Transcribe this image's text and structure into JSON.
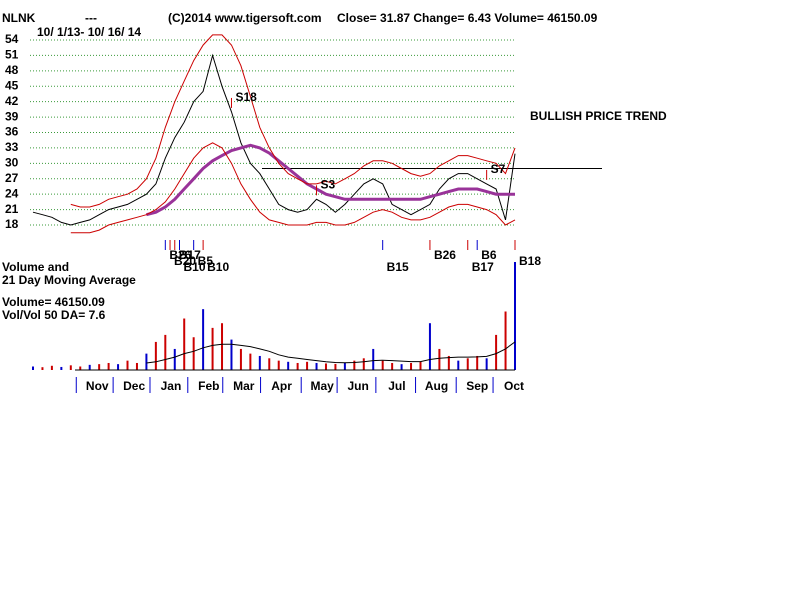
{
  "header": {
    "symbol": "NLNK",
    "flag": "---",
    "copyright": "(C)2014 www.tigersoft.com",
    "quote": "Close=  31.87  Change= 6.43 Volume= 46150.09",
    "period": "10/ 1/13- 10/ 16/ 14"
  },
  "chart_data": {
    "type": "line",
    "annotation": "BULLISH PRICE TREND",
    "ylim": [
      18,
      54
    ],
    "yticks": [
      18,
      21,
      24,
      27,
      30,
      33,
      36,
      39,
      42,
      45,
      48,
      51,
      54
    ],
    "xlim": [
      0,
      51
    ],
    "xticks": [
      {
        "value": 6.8,
        "label": "Nov"
      },
      {
        "value": 10.7,
        "label": "Dec"
      },
      {
        "value": 14.6,
        "label": "Jan"
      },
      {
        "value": 18.6,
        "label": "Feb"
      },
      {
        "value": 22.3,
        "label": "Mar"
      },
      {
        "value": 26.3,
        "label": "Apr"
      },
      {
        "value": 30.6,
        "label": "May"
      },
      {
        "value": 34.4,
        "label": "Jun"
      },
      {
        "value": 38.5,
        "label": "Jul"
      },
      {
        "value": 42.7,
        "label": "Aug"
      },
      {
        "value": 47,
        "label": "Sep"
      },
      {
        "value": 50.9,
        "label": "Oct"
      }
    ],
    "grid": true,
    "resistance": 29,
    "series": [
      {
        "color": "#000000",
        "values": [
          20.5,
          20,
          19.5,
          18.5,
          18,
          18.5,
          19,
          20,
          21,
          21.5,
          22,
          23,
          24,
          26,
          31,
          35,
          38,
          42,
          44,
          51,
          45,
          40,
          34,
          30,
          28,
          25,
          22,
          21,
          20.5,
          21,
          23,
          22,
          20.5,
          22,
          24,
          26,
          27,
          26,
          22,
          21,
          20,
          21,
          22,
          25,
          27,
          28,
          28,
          27,
          26,
          25,
          19,
          31.87
        ]
      },
      {
        "color": "#993399",
        "values": [
          null,
          null,
          null,
          null,
          null,
          null,
          null,
          null,
          null,
          null,
          null,
          null,
          20,
          20.5,
          21.5,
          23,
          25,
          27,
          29,
          30.5,
          31.5,
          32.5,
          33,
          33.5,
          33,
          32,
          30.5,
          29,
          27.5,
          26,
          25,
          24,
          23.5,
          23,
          23,
          23,
          23,
          23,
          23,
          23,
          23,
          23,
          23.5,
          24,
          24.5,
          25,
          25,
          25,
          24.5,
          24,
          24,
          24
        ]
      },
      {
        "color": "#cc0000",
        "values": [
          null,
          null,
          null,
          null,
          22,
          21.5,
          21.5,
          22,
          23,
          23.5,
          24,
          25,
          27,
          31,
          37,
          42,
          46,
          50,
          53,
          55,
          55,
          53,
          49,
          43,
          37,
          33,
          30,
          28,
          27,
          26,
          26,
          26.5,
          26,
          27,
          28,
          29.5,
          30.5,
          30.5,
          30,
          29,
          28,
          27.5,
          28,
          29.5,
          30.5,
          31.5,
          31.5,
          31,
          30.5,
          30,
          28,
          33
        ]
      },
      {
        "color": "#cc0000",
        "values": [
          null,
          null,
          null,
          null,
          16.5,
          16.5,
          16.5,
          17,
          18,
          18.5,
          19,
          19.5,
          20,
          21,
          22.5,
          25,
          28,
          31,
          33,
          34,
          33,
          30,
          26,
          23,
          20.5,
          19,
          18.5,
          18,
          18,
          18,
          18.5,
          18.5,
          18,
          18,
          18.5,
          19.5,
          20.5,
          21,
          20.5,
          19.5,
          19,
          19,
          19.5,
          20.5,
          21.5,
          22,
          22,
          21.5,
          21,
          20,
          18,
          19
        ]
      }
    ],
    "signals": [
      {
        "label": "B26",
        "at": 14,
        "kind": "B"
      },
      {
        "label": "B20",
        "at": 14.5,
        "kind": "B"
      },
      {
        "label": "B10",
        "at": 15.5,
        "kind": "B"
      },
      {
        "label": "B17",
        "at": 15,
        "kind": "B"
      },
      {
        "label": "B5",
        "at": 17,
        "kind": "B"
      },
      {
        "label": "B10",
        "at": 18,
        "kind": "B"
      },
      {
        "label": "S18",
        "at": 21,
        "kind": "S"
      },
      {
        "label": "S3",
        "at": 30,
        "kind": "S"
      },
      {
        "label": "B15",
        "at": 37,
        "kind": "B"
      },
      {
        "label": "B26",
        "at": 42,
        "kind": "B"
      },
      {
        "label": "S7",
        "at": 48,
        "kind": "S"
      },
      {
        "label": "B17",
        "at": 46,
        "kind": "B"
      },
      {
        "label": "B6",
        "at": 47,
        "kind": "B"
      },
      {
        "label": "B18",
        "at": 51,
        "kind": "B"
      }
    ],
    "volume_title": [
      "Volume and",
      "21 Day Moving Average"
    ],
    "volume_label": "Volume= 46150.09",
    "volume_ratio": "Vol/Vol 50 DA= 7.6",
    "volume": [
      1500,
      1200,
      1800,
      1300,
      2000,
      1500,
      2200,
      2500,
      3000,
      2500,
      4000,
      3000,
      7000,
      12000,
      15000,
      9000,
      22000,
      14000,
      26000,
      18000,
      20000,
      13000,
      9000,
      7000,
      6000,
      5000,
      4000,
      3500,
      3000,
      3500,
      3000,
      2800,
      2600,
      3000,
      4000,
      5000,
      9000,
      4000,
      3000,
      2500,
      3000,
      3500,
      20000,
      9000,
      6000,
      4000,
      5000,
      6000,
      5000,
      15000,
      25000,
      46150.09
    ],
    "volume_ma": [
      null,
      null,
      null,
      null,
      null,
      null,
      null,
      null,
      null,
      null,
      null,
      null,
      3000,
      3500,
      4500,
      5500,
      7000,
      8000,
      9500,
      10500,
      11000,
      11000,
      10500,
      10000,
      9000,
      8000,
      6500,
      5500,
      5000,
      4500,
      4000,
      3500,
      3200,
      3100,
      3200,
      3500,
      4000,
      4200,
      4000,
      3800,
      3600,
      3600,
      4500,
      5000,
      5300,
      5500,
      5500,
      5600,
      5800,
      7000,
      9000,
      12000
    ]
  }
}
